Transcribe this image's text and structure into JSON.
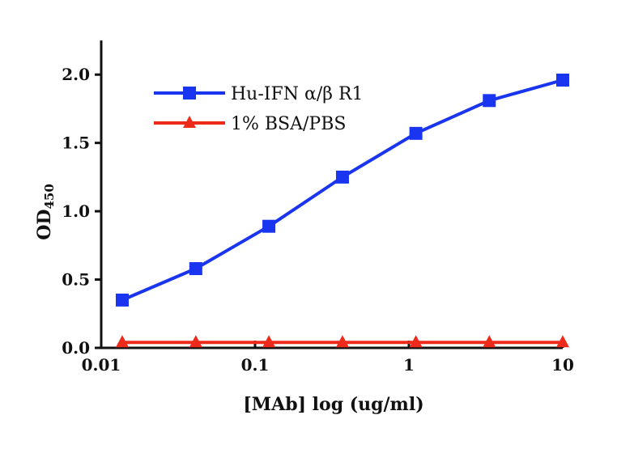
{
  "chart_data": {
    "type": "line",
    "title": "",
    "xlabel": "[MAb] log (ug/ml)",
    "ylabel": "OD",
    "ylabel_subscript": "450",
    "x_scale": "log",
    "xlim": [
      0.01,
      10
    ],
    "ylim": [
      0,
      2.25
    ],
    "x_ticks": [
      {
        "value": 0.01,
        "label": "0.01"
      },
      {
        "value": 0.1,
        "label": "0.1"
      },
      {
        "value": 1,
        "label": "1"
      },
      {
        "value": 10,
        "label": "10"
      }
    ],
    "y_ticks": [
      {
        "value": 0,
        "label": "0.0"
      },
      {
        "value": 0.5,
        "label": "0.5"
      },
      {
        "value": 1.0,
        "label": "1.0"
      },
      {
        "value": 1.5,
        "label": "1.5"
      },
      {
        "value": 2.0,
        "label": "2.0"
      }
    ],
    "grid": false,
    "legend_position": "top-left",
    "series": [
      {
        "name": "Hu-IFN α/β R1",
        "color": "#1a35f0",
        "marker": "square",
        "x": [
          0.0137,
          0.0412,
          0.123,
          0.37,
          1.11,
          3.33,
          10
        ],
        "y": [
          0.35,
          0.58,
          0.89,
          1.25,
          1.57,
          1.81,
          1.96
        ]
      },
      {
        "name": "1% BSA/PBS",
        "color": "#ee2a1b",
        "marker": "triangle",
        "x": [
          0.0137,
          0.0412,
          0.123,
          0.37,
          1.11,
          3.33,
          10
        ],
        "y": [
          0.04,
          0.04,
          0.04,
          0.04,
          0.04,
          0.04,
          0.04
        ]
      }
    ]
  }
}
